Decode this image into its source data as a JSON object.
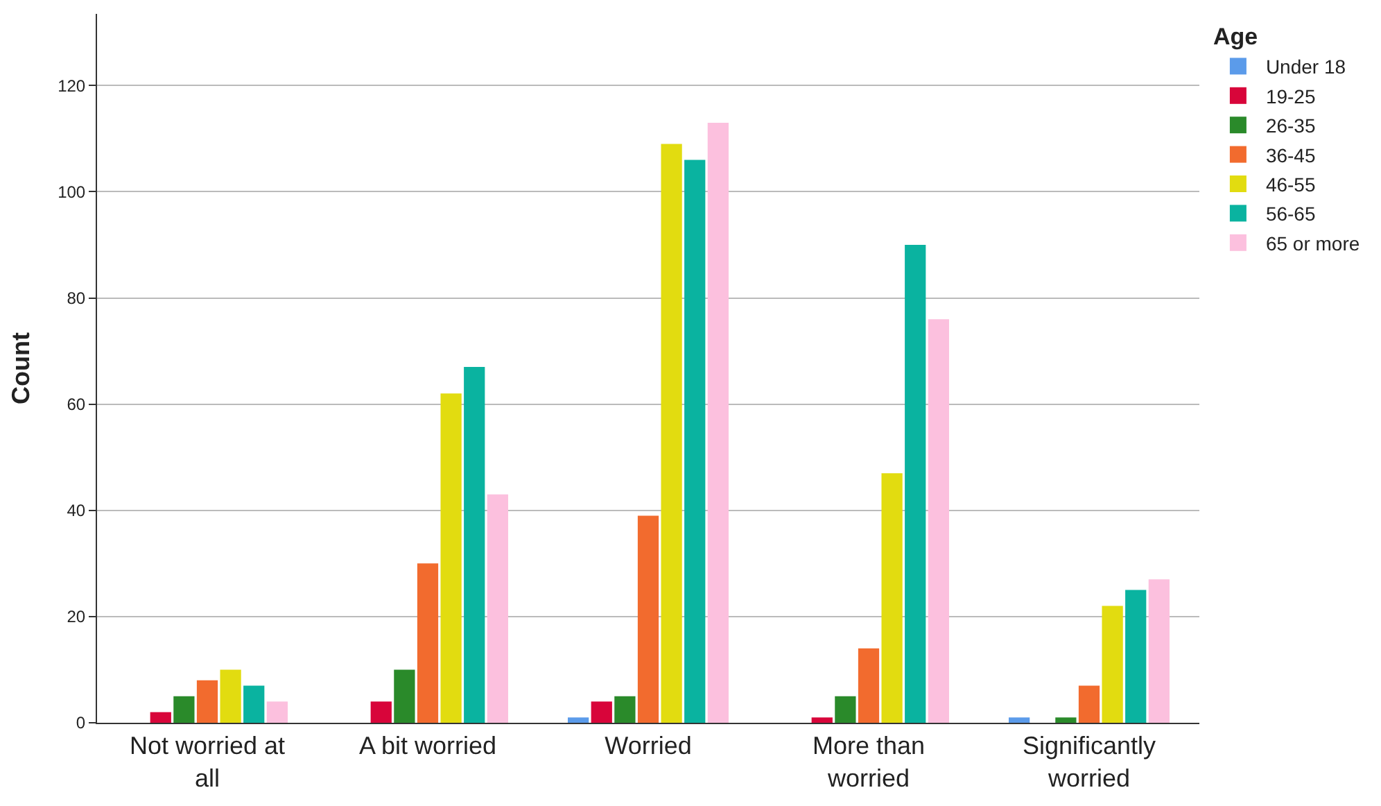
{
  "chart_data": {
    "type": "bar",
    "ylabel": "Count",
    "legend_title": "Age",
    "legend": "top right",
    "grid": "y",
    "categories": [
      "Not worried at all",
      "A bit worried",
      "Worried",
      "More than worried",
      "Significantly worried"
    ],
    "ylim": [
      0,
      133.5
    ],
    "yticks": [
      0,
      20,
      40,
      60,
      80,
      100,
      120
    ],
    "series": [
      {
        "name": "Under 18",
        "color": "#5b9bea",
        "values": [
          0,
          0,
          1,
          0,
          1
        ]
      },
      {
        "name": "19-25",
        "color": "#d8053a",
        "values": [
          2,
          4,
          4,
          1,
          0
        ]
      },
      {
        "name": "26-35",
        "color": "#2a8a2a",
        "values": [
          5,
          10,
          5,
          5,
          1
        ]
      },
      {
        "name": "36-45",
        "color": "#f26b2e",
        "values": [
          8,
          30,
          39,
          14,
          7
        ]
      },
      {
        "name": "46-55",
        "color": "#e2dc10",
        "values": [
          10,
          62,
          109,
          47,
          22
        ]
      },
      {
        "name": "56-65",
        "color": "#0ab3a0",
        "values": [
          7,
          67,
          106,
          90,
          25
        ]
      },
      {
        "name": "65 or more",
        "color": "#fcc0de",
        "values": [
          4,
          43,
          113,
          76,
          27
        ]
      }
    ]
  }
}
